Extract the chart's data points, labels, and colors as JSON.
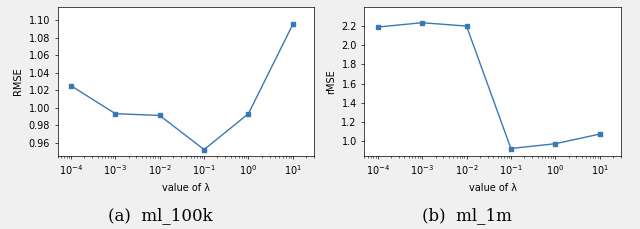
{
  "left": {
    "x": [
      0.0001,
      0.001,
      0.01,
      0.1,
      1.0,
      10.0
    ],
    "y": [
      1.025,
      0.993,
      0.991,
      0.952,
      0.993,
      1.095
    ],
    "xlabel": "value of λ",
    "ylabel": "RMSE",
    "ylim": [
      0.945,
      1.115
    ],
    "yticks": [
      0.96,
      0.98,
      1.0,
      1.02,
      1.04,
      1.06,
      1.08,
      1.1
    ],
    "caption": "(a)  ml_100k"
  },
  "right": {
    "x": [
      0.0001,
      0.001,
      0.01,
      0.1,
      1.0,
      10.0
    ],
    "y": [
      2.19,
      2.235,
      2.2,
      0.925,
      0.975,
      1.075
    ],
    "xlabel": "value of λ",
    "ylabel": "rMSE",
    "ylim": [
      0.85,
      2.4
    ],
    "yticks": [
      1.0,
      1.2,
      1.4,
      1.6,
      1.8,
      2.0,
      2.2
    ],
    "caption": "(b)  ml_1m"
  },
  "line_color": "#3a78b5",
  "marker": "s",
  "marker_size": 3,
  "linewidth": 1.0,
  "caption_fontsize": 12,
  "axis_fontsize": 7,
  "tick_fontsize": 7,
  "fig_facecolor": "#f0f0f0",
  "axes_facecolor": "#ffffff"
}
